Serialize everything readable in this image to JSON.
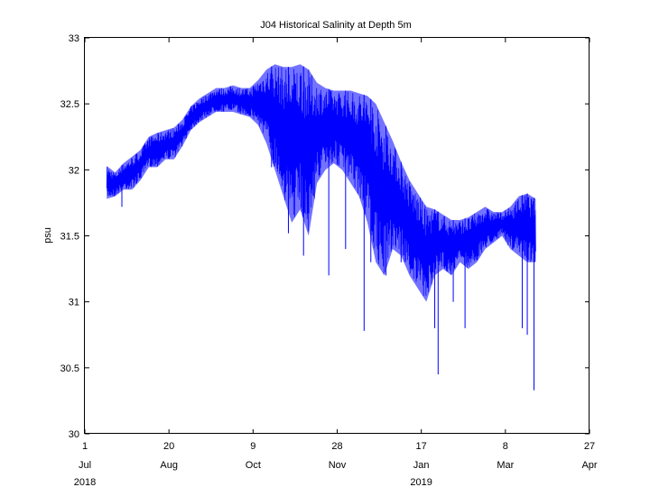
{
  "chart_data": {
    "type": "line",
    "title": "J04 Historical Salinity at Depth 5m",
    "xlabel": "",
    "ylabel": "psu",
    "ylim": [
      30,
      33
    ],
    "xlim": [
      "2018-07-01",
      "2019-04-27"
    ],
    "grid": false,
    "y_ticks": [
      "30",
      "30.5",
      "31",
      "31.5",
      "32",
      "32.5",
      "33"
    ],
    "x_ticks": [
      {
        "date": "2018-07-01",
        "day": "1",
        "month": "Jul",
        "year": "2018"
      },
      {
        "date": "2018-08-20",
        "day": "20",
        "month": "Aug",
        "year": ""
      },
      {
        "date": "2018-10-09",
        "day": "9",
        "month": "Oct",
        "year": ""
      },
      {
        "date": "2018-11-28",
        "day": "28",
        "month": "Nov",
        "year": ""
      },
      {
        "date": "2019-01-17",
        "day": "17",
        "month": "Jan",
        "year": "2019"
      },
      {
        "date": "2019-03-08",
        "day": "8",
        "month": "Mar",
        "year": ""
      },
      {
        "date": "2019-04-27",
        "day": "27",
        "month": "Apr",
        "year": ""
      }
    ],
    "series_color": "#0000ff",
    "series": [
      {
        "name": "",
        "x": [
          "2018-07-14",
          "2018-07-19",
          "2018-07-24",
          "2018-07-29",
          "2018-08-03",
          "2018-08-08",
          "2018-08-13",
          "2018-08-18",
          "2018-08-23",
          "2018-08-28",
          "2018-09-02",
          "2018-09-07",
          "2018-09-12",
          "2018-09-17",
          "2018-09-22",
          "2018-09-27",
          "2018-10-02",
          "2018-10-07",
          "2018-10-12",
          "2018-10-17",
          "2018-10-22",
          "2018-10-27",
          "2018-11-01",
          "2018-11-06",
          "2018-11-11",
          "2018-11-16",
          "2018-11-21",
          "2018-11-26",
          "2018-12-01",
          "2018-12-06",
          "2018-12-11",
          "2018-12-16",
          "2018-12-21",
          "2018-12-26",
          "2018-12-31",
          "2019-01-05",
          "2019-01-10",
          "2019-01-15",
          "2019-01-20",
          "2019-01-25",
          "2019-01-30",
          "2019-02-04",
          "2019-02-09",
          "2019-02-14",
          "2019-02-19",
          "2019-02-24",
          "2019-03-01",
          "2019-03-06",
          "2019-03-11",
          "2019-03-16",
          "2019-03-21",
          "2019-03-26"
        ],
        "high": [
          32.03,
          31.98,
          32.05,
          32.1,
          32.15,
          32.25,
          32.28,
          32.3,
          32.32,
          32.38,
          32.48,
          32.54,
          32.58,
          32.62,
          32.62,
          32.64,
          32.62,
          32.62,
          32.68,
          32.76,
          32.8,
          32.78,
          32.78,
          32.8,
          32.76,
          32.66,
          32.62,
          32.6,
          32.6,
          32.6,
          32.58,
          32.56,
          32.5,
          32.36,
          32.22,
          32.06,
          31.92,
          31.82,
          31.72,
          31.7,
          31.66,
          31.62,
          31.62,
          31.64,
          31.68,
          31.72,
          31.68,
          31.68,
          31.72,
          31.8,
          31.82,
          31.78
        ],
        "low": [
          31.78,
          31.8,
          31.85,
          31.85,
          31.92,
          32.02,
          32.02,
          32.08,
          32.08,
          32.18,
          32.3,
          32.36,
          32.4,
          32.44,
          32.44,
          32.44,
          32.42,
          32.4,
          32.34,
          32.2,
          32.0,
          31.8,
          31.6,
          31.7,
          31.5,
          31.9,
          32.0,
          32.05,
          32.0,
          31.9,
          31.8,
          31.6,
          31.3,
          31.2,
          31.4,
          31.35,
          31.2,
          31.1,
          31.0,
          31.2,
          31.25,
          31.2,
          31.3,
          31.25,
          31.3,
          31.4,
          31.45,
          31.5,
          31.4,
          31.35,
          31.3,
          31.3
        ],
        "spikes": [
          {
            "x": "2018-07-23",
            "y": 31.72
          },
          {
            "x": "2018-10-20",
            "y": 32.02
          },
          {
            "x": "2018-10-30",
            "y": 31.52
          },
          {
            "x": "2018-11-08",
            "y": 31.35
          },
          {
            "x": "2018-11-23",
            "y": 31.2
          },
          {
            "x": "2018-12-03",
            "y": 31.4
          },
          {
            "x": "2018-12-14",
            "y": 30.78
          },
          {
            "x": "2018-12-18",
            "y": 31.3
          },
          {
            "x": "2018-12-27",
            "y": 31.2
          },
          {
            "x": "2019-01-05",
            "y": 31.3
          },
          {
            "x": "2019-01-25",
            "y": 30.8
          },
          {
            "x": "2019-01-27",
            "y": 30.45
          },
          {
            "x": "2019-02-05",
            "y": 31.0
          },
          {
            "x": "2019-02-12",
            "y": 30.8
          },
          {
            "x": "2019-03-18",
            "y": 30.8
          },
          {
            "x": "2019-03-21",
            "y": 30.75
          },
          {
            "x": "2019-03-25",
            "y": 30.33
          }
        ]
      }
    ]
  }
}
